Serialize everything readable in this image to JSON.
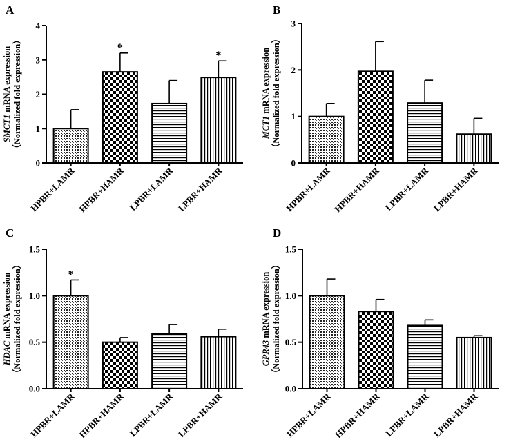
{
  "chart_data": [
    {
      "type": "bar",
      "panel": "A",
      "gene": "SMCT1",
      "ylabel_suffix": " mRNA expression",
      "ylabel_line2": "（Normalized fold expression）",
      "categories": [
        "HPBR+LAMR",
        "HPBR+HAMR",
        "LPBR+LAMR",
        "LPBR+HAMR"
      ],
      "values": [
        1.0,
        2.65,
        1.73,
        2.49
      ],
      "errors": [
        0.55,
        0.55,
        0.67,
        0.48
      ],
      "significance": [
        "",
        "*",
        "",
        "*"
      ],
      "ylim": [
        0,
        4
      ],
      "yticks": [
        "0",
        "1",
        "2",
        "3",
        "4"
      ],
      "tick_values": [
        0,
        1,
        2,
        3,
        4
      ],
      "patterns": [
        "dots",
        "checker",
        "hlines",
        "vlines"
      ]
    },
    {
      "type": "bar",
      "panel": "B",
      "gene": "MCT1",
      "ylabel_suffix": " mRNA expression",
      "ylabel_line2": "（Normalized fold expression）",
      "categories": [
        "HPBR+LAMR",
        "HPBR+HAMR",
        "LPBR+LAMR",
        "LPBR+HAMR"
      ],
      "values": [
        1.0,
        1.97,
        1.29,
        0.62
      ],
      "errors": [
        0.28,
        0.64,
        0.49,
        0.34
      ],
      "significance": [
        "",
        "",
        "",
        ""
      ],
      "ylim": [
        0,
        3
      ],
      "yticks": [
        "0",
        "1",
        "2",
        "3"
      ],
      "tick_values": [
        0,
        1,
        2,
        3
      ],
      "patterns": [
        "dots",
        "checker",
        "hlines",
        "vlines"
      ]
    },
    {
      "type": "bar",
      "panel": "C",
      "gene": "HDAC",
      "ylabel_suffix": " mRNA expression",
      "ylabel_line2": "（Normalized fold expression）",
      "categories": [
        "HPBR+LAMR",
        "HPBR+HAMR",
        "LPBR+LAMR",
        "LPBR+HAMR"
      ],
      "values": [
        1.0,
        0.5,
        0.59,
        0.56
      ],
      "errors": [
        0.17,
        0.05,
        0.1,
        0.08
      ],
      "significance": [
        "*",
        "",
        "",
        ""
      ],
      "ylim": [
        0,
        1.5
      ],
      "yticks": [
        "0.0",
        "0.5",
        "1.0",
        "1.5"
      ],
      "tick_values": [
        0,
        0.5,
        1.0,
        1.5
      ],
      "patterns": [
        "dots",
        "checker",
        "hlines",
        "vlines"
      ]
    },
    {
      "type": "bar",
      "panel": "D",
      "gene": "GPR43",
      "ylabel_suffix": " mRNA expression",
      "ylabel_line2": "（Normalized fold expression）",
      "categories": [
        "HPBR+LAMR",
        "HPBR+HAMR",
        "LPBR+LAMR",
        "LPBR+HAMR"
      ],
      "values": [
        1.0,
        0.83,
        0.68,
        0.55
      ],
      "errors": [
        0.18,
        0.13,
        0.06,
        0.02
      ],
      "significance": [
        "",
        "",
        "",
        ""
      ],
      "ylim": [
        0,
        1.5
      ],
      "yticks": [
        "0.0",
        "0.5",
        "1.0",
        "1.5"
      ],
      "tick_values": [
        0,
        0.5,
        1.0,
        1.5
      ],
      "patterns": [
        "dots",
        "checker",
        "hlines",
        "vlines"
      ]
    }
  ]
}
